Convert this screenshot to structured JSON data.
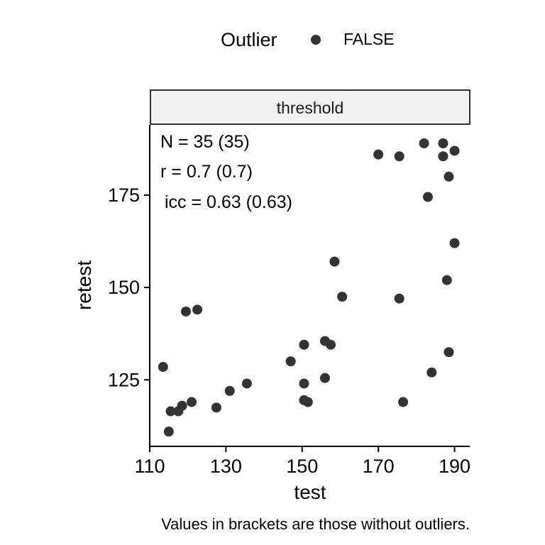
{
  "chart_data": {
    "type": "scatter",
    "legend": {
      "title": "Outlier",
      "entries": [
        "FALSE"
      ],
      "placement": "top"
    },
    "panel_strip": "threshold",
    "annotations": [
      "N = 35 (35)",
      "r = 0.7 (0.7)",
      "icc = 0.63 (0.63)"
    ],
    "xlabel": "test",
    "ylabel": "retest",
    "xlim": [
      110,
      194
    ],
    "ylim": [
      107,
      194
    ],
    "xticks": [
      110,
      130,
      150,
      170,
      190
    ],
    "yticks": [
      125,
      150,
      175
    ],
    "grid": false,
    "caption": "Values in brackets are those without outliers.",
    "point_color": "#333333",
    "series": [
      {
        "outlier": false,
        "x": [
          113.5,
          115.0,
          115.5,
          117.5,
          118.5,
          119.5,
          121.0,
          122.5,
          127.5,
          131.0,
          135.5,
          147.0,
          150.5,
          150.5,
          150.5,
          151.5,
          156.0,
          156.0,
          157.5,
          158.5,
          160.5,
          170.0,
          175.5,
          175.5,
          176.5,
          182.0,
          183.0,
          184.0,
          187.0,
          187.0,
          188.0,
          188.5,
          188.5,
          190.0,
          190.0
        ],
        "y": [
          128.5,
          111.0,
          116.5,
          116.5,
          118.0,
          143.5,
          119.0,
          144.0,
          117.5,
          122.0,
          124.0,
          130.0,
          134.5,
          124.0,
          119.5,
          119.0,
          135.5,
          125.5,
          134.5,
          157.0,
          147.5,
          186.0,
          185.5,
          147.0,
          119.0,
          189.0,
          174.5,
          127.0,
          189.0,
          185.5,
          152.0,
          180.0,
          132.5,
          187.0,
          162.0
        ]
      }
    ]
  }
}
